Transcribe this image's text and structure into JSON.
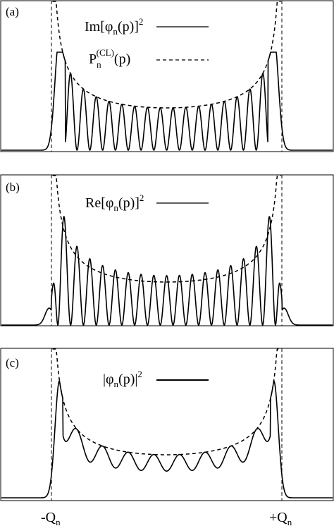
{
  "chart_data": [
    {
      "type": "line",
      "panel_label": "(a)",
      "legend": [
        {
          "text": "Im[φ",
          "sub": "n",
          "text2": "(p)]",
          "sup": "2",
          "text3": "",
          "style": "solid"
        },
        {
          "text": "P",
          "sub": "n",
          "sup": "(CL)",
          "text2": "(p)",
          "text3": "",
          "style": "dashed"
        }
      ],
      "series": [
        {
          "style": "solid",
          "peaks": [
            0.62,
            0.62
          ],
          "oscillations": 18
        },
        {
          "style": "dashed"
        }
      ]
    },
    {
      "type": "line",
      "panel_label": "(b)",
      "legend": [
        {
          "text": "Re[φ",
          "sub": "n",
          "text2": "(p)]",
          "sup": "2",
          "text3": "",
          "style": "solid"
        }
      ],
      "series": [
        {
          "style": "solid",
          "peaks": [
            0.82,
            0.82
          ],
          "oscillations": 18
        },
        {
          "style": "dashed"
        }
      ]
    },
    {
      "type": "line",
      "panel_label": "(c)",
      "legend": [
        {
          "text": "|φ",
          "sub": "n",
          "text2": "(p)|",
          "sup": "2",
          "text3": "",
          "style": "solid"
        }
      ],
      "series": [
        {
          "style": "solid",
          "peaks": [
            0.88,
            0.88
          ],
          "oscillations": 9
        },
        {
          "style": "dashed"
        }
      ]
    }
  ],
  "x_axis": {
    "ticks": [
      {
        "prefix": "-Q",
        "sub": "n",
        "position": "-Qn"
      },
      {
        "prefix": "+Q",
        "sub": "n",
        "position": "+Qn"
      }
    ]
  }
}
